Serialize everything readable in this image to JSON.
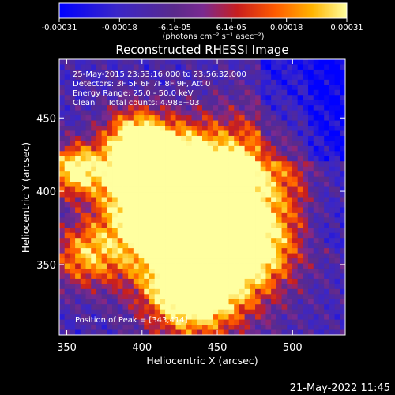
{
  "chart_data": {
    "type": "heatmap",
    "title": "Reconstructed RHESSI Image",
    "xlabel": "Heliocentric X (arcsec)",
    "ylabel": "Heliocentric Y (arcsec)",
    "xlim": [
      345,
      535
    ],
    "ylim": [
      302,
      490
    ],
    "xticks": [
      350,
      400,
      450,
      500
    ],
    "yticks": [
      350,
      400,
      450
    ],
    "annotations": [
      "25-May-2015 23:53:16.000 to 23:56:32.000",
      "Detectors: 3F 5F 6F 7F 8F 9F, Att 0",
      "Energy Range: 25.0 - 50.0 keV",
      "Clean     Total counts: 4.98E+03"
    ],
    "peak_label": "Position of Peak = [343,414]",
    "colorbar": {
      "range": [
        -0.00031,
        0.00031
      ],
      "tick_labels": [
        "-0.00031",
        "-0.00018",
        "-6.1e-05",
        "6.1e-05",
        "0.00018",
        "0.00031"
      ],
      "label": "(photons cm⁻² s⁻¹ asec⁻²)"
    },
    "grid": "54 x 54 pixels, ~3.5 arcsec each; intensity field approximated",
    "colors": {
      "background": "#000000",
      "text": "#ffffff"
    }
  },
  "footer_date": "21-May-2022 11:45"
}
